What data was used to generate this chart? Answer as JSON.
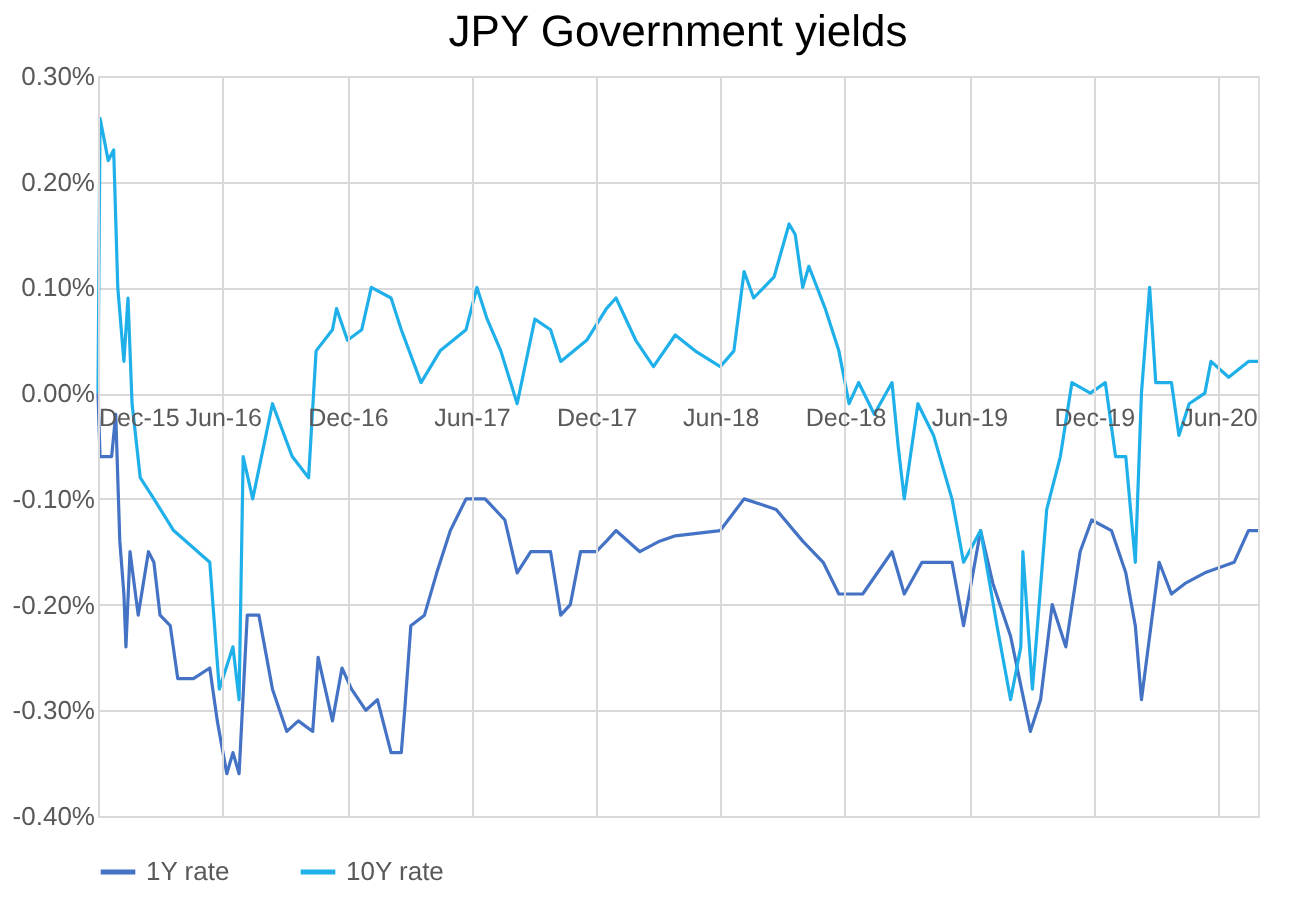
{
  "chart_data": {
    "type": "line",
    "title": "JPY Government yields",
    "xlim": [
      "2015-12-01",
      "2020-07-29"
    ],
    "xticks": [
      {
        "value": "2015-12-01",
        "label": "Dec-15"
      },
      {
        "value": "2016-06-01",
        "label": "Jun-16"
      },
      {
        "value": "2016-12-01",
        "label": "Dec-16"
      },
      {
        "value": "2017-06-01",
        "label": "Jun-17"
      },
      {
        "value": "2017-12-01",
        "label": "Dec-17"
      },
      {
        "value": "2018-06-01",
        "label": "Jun-18"
      },
      {
        "value": "2018-12-01",
        "label": "Dec-18"
      },
      {
        "value": "2019-06-01",
        "label": "Jun-19"
      },
      {
        "value": "2019-12-01",
        "label": "Dec-19"
      },
      {
        "value": "2020-06-01",
        "label": "Jun-20"
      }
    ],
    "ylim": [
      -0.4,
      0.3
    ],
    "yticks": [
      {
        "value": -0.4,
        "label": "-0.40%"
      },
      {
        "value": -0.3,
        "label": "-0.30%"
      },
      {
        "value": -0.2,
        "label": "-0.20%"
      },
      {
        "value": -0.1,
        "label": "-0.10%"
      },
      {
        "value": 0,
        "label": "0.00%"
      },
      {
        "value": 0.1,
        "label": "0.10%"
      },
      {
        "value": 0.2,
        "label": "0.20%"
      },
      {
        "value": 0.3,
        "label": "0.30%"
      }
    ],
    "grid": true,
    "legend": "bottom",
    "line_style": "solid",
    "marker": "none",
    "series": [
      {
        "name": "1Y rate",
        "color": "#4472c4",
        "x": [
          "2015-12-01",
          "2015-12-04",
          "2015-12-21",
          "2015-12-27",
          "2016-01-02",
          "2016-01-08",
          "2016-01-11",
          "2016-01-17",
          "2016-01-29",
          "2016-02-13",
          "2016-02-21",
          "2016-03-01",
          "2016-03-16",
          "2016-03-27",
          "2016-04-19",
          "2016-05-13",
          "2016-05-24",
          "2016-06-07",
          "2016-06-16",
          "2016-06-25",
          "2016-07-07",
          "2016-07-24",
          "2016-08-13",
          "2016-09-03",
          "2016-09-20",
          "2016-10-11",
          "2016-10-19",
          "2016-11-09",
          "2016-11-23",
          "2016-12-07",
          "2016-12-28",
          "2017-01-14",
          "2017-02-03",
          "2017-02-18",
          "2017-02-23",
          "2017-03-04",
          "2017-03-24",
          "2017-04-11",
          "2017-05-01",
          "2017-05-24",
          "2017-06-21",
          "2017-07-20",
          "2017-08-07",
          "2017-08-27",
          "2017-09-25",
          "2017-10-10",
          "2017-10-24",
          "2017-11-08",
          "2017-12-01",
          "2017-12-16",
          "2017-12-30",
          "2018-02-03",
          "2018-03-04",
          "2018-03-27",
          "2018-06-01",
          "2018-07-06",
          "2018-08-22",
          "2018-09-30",
          "2018-10-30",
          "2018-11-22",
          "2018-12-27",
          "2019-02-08",
          "2019-02-26",
          "2019-03-24",
          "2019-05-07",
          "2019-05-24",
          "2019-06-18",
          "2019-07-06",
          "2019-08-01",
          "2019-08-30",
          "2019-09-14",
          "2019-10-01",
          "2019-10-21",
          "2019-11-11",
          "2019-11-28",
          "2019-12-27",
          "2020-01-17",
          "2020-01-31",
          "2020-02-09",
          "2020-02-21",
          "2020-03-06",
          "2020-03-24",
          "2020-04-13",
          "2020-05-12",
          "2020-06-24",
          "2020-07-15",
          "2020-07-29"
        ],
        "values": [
          0.0,
          -0.06,
          -0.06,
          -0.02,
          -0.14,
          -0.19,
          -0.24,
          -0.15,
          -0.21,
          -0.15,
          -0.16,
          -0.21,
          -0.22,
          -0.27,
          -0.27,
          -0.26,
          -0.31,
          -0.36,
          -0.34,
          -0.36,
          -0.21,
          -0.21,
          -0.28,
          -0.32,
          -0.31,
          -0.32,
          -0.25,
          -0.31,
          -0.26,
          -0.28,
          -0.3,
          -0.29,
          -0.34,
          -0.34,
          -0.3,
          -0.22,
          -0.21,
          -0.17,
          -0.13,
          -0.1,
          -0.1,
          -0.12,
          -0.17,
          -0.15,
          -0.15,
          -0.21,
          -0.2,
          -0.15,
          -0.15,
          -0.14,
          -0.13,
          -0.15,
          -0.14,
          -0.135,
          -0.13,
          -0.1,
          -0.11,
          -0.14,
          -0.16,
          -0.19,
          -0.19,
          -0.15,
          -0.19,
          -0.16,
          -0.16,
          -0.22,
          -0.13,
          -0.18,
          -0.23,
          -0.32,
          -0.29,
          -0.2,
          -0.24,
          -0.15,
          -0.12,
          -0.13,
          -0.17,
          -0.22,
          -0.29,
          -0.23,
          -0.16,
          -0.19,
          -0.18,
          -0.17,
          -0.16,
          -0.13,
          -0.13
        ]
      },
      {
        "name": "10Y rate",
        "color": "#1fb0ea",
        "x": [
          "2015-12-01",
          "2015-12-04",
          "2015-12-16",
          "2015-12-24",
          "2015-12-30",
          "2016-01-08",
          "2016-01-14",
          "2016-01-20",
          "2016-02-01",
          "2016-02-21",
          "2016-03-21",
          "2016-05-13",
          "2016-05-27",
          "2016-06-16",
          "2016-06-25",
          "2016-07-01",
          "2016-07-15",
          "2016-08-13",
          "2016-09-11",
          "2016-10-05",
          "2016-10-16",
          "2016-11-09",
          "2016-11-15",
          "2016-12-01",
          "2016-12-22",
          "2017-01-05",
          "2017-02-03",
          "2017-02-18",
          "2017-03-19",
          "2017-04-16",
          "2017-05-24",
          "2017-06-09",
          "2017-06-24",
          "2017-07-14",
          "2017-08-07",
          "2017-09-02",
          "2017-09-25",
          "2017-10-10",
          "2017-11-17",
          "2017-12-16",
          "2017-12-30",
          "2018-01-28",
          "2018-02-23",
          "2018-03-27",
          "2018-04-25",
          "2018-06-01",
          "2018-06-21",
          "2018-07-06",
          "2018-07-20",
          "2018-08-19",
          "2018-09-10",
          "2018-09-19",
          "2018-09-30",
          "2018-10-09",
          "2018-11-02",
          "2018-11-22",
          "2018-12-07",
          "2018-12-21",
          "2019-01-13",
          "2019-02-08",
          "2019-02-17",
          "2019-02-26",
          "2019-03-18",
          "2019-04-10",
          "2019-05-07",
          "2019-05-24",
          "2019-06-18",
          "2019-07-12",
          "2019-08-01",
          "2019-08-16",
          "2019-08-19",
          "2019-09-02",
          "2019-09-23",
          "2019-10-13",
          "2019-10-30",
          "2019-11-26",
          "2019-12-18",
          "2020-01-02",
          "2020-01-17",
          "2020-01-31",
          "2020-02-09",
          "2020-02-21",
          "2020-03-01",
          "2020-03-24",
          "2020-04-04",
          "2020-04-19",
          "2020-05-12",
          "2020-05-21",
          "2020-06-16",
          "2020-07-15",
          "2020-07-29"
        ],
        "values": [
          0.0,
          0.26,
          0.22,
          0.23,
          0.1,
          0.03,
          0.09,
          -0.01,
          -0.08,
          -0.1,
          -0.13,
          -0.16,
          -0.28,
          -0.24,
          -0.29,
          -0.06,
          -0.1,
          -0.01,
          -0.06,
          -0.08,
          0.04,
          0.06,
          0.08,
          0.05,
          0.06,
          0.1,
          0.09,
          0.06,
          0.01,
          0.04,
          0.06,
          0.1,
          0.07,
          0.04,
          -0.01,
          0.07,
          0.06,
          0.03,
          0.05,
          0.08,
          0.09,
          0.05,
          0.025,
          0.055,
          0.04,
          0.025,
          0.04,
          0.115,
          0.09,
          0.11,
          0.16,
          0.15,
          0.1,
          0.12,
          0.08,
          0.04,
          -0.01,
          0.01,
          -0.02,
          0.01,
          -0.05,
          -0.1,
          -0.01,
          -0.04,
          -0.1,
          -0.16,
          -0.13,
          -0.22,
          -0.29,
          -0.24,
          -0.15,
          -0.28,
          -0.11,
          -0.06,
          0.01,
          0.0,
          0.01,
          -0.06,
          -0.06,
          -0.16,
          0.0,
          0.1,
          0.01,
          0.01,
          -0.04,
          -0.01,
          0.0,
          0.03,
          0.015,
          0.03,
          0.03
        ]
      }
    ]
  }
}
